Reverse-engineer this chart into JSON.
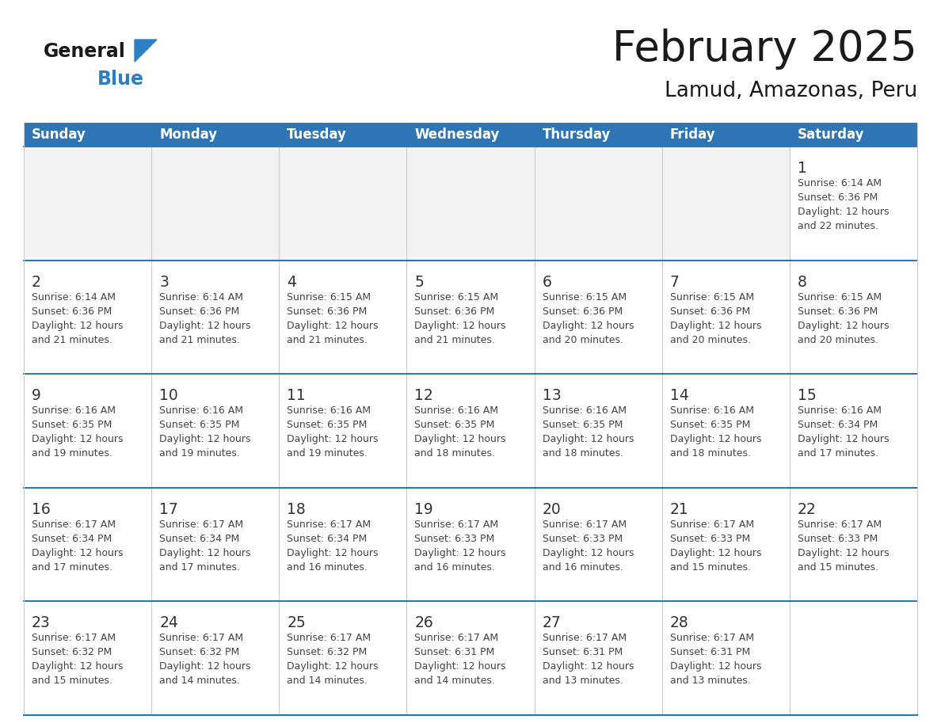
{
  "title": "February 2025",
  "subtitle": "Lamud, Amazonas, Peru",
  "days_of_week": [
    "Sunday",
    "Monday",
    "Tuesday",
    "Wednesday",
    "Thursday",
    "Friday",
    "Saturday"
  ],
  "header_bg_color": "#2E75B6",
  "header_text_color": "#FFFFFF",
  "cell_bg_color": "#FFFFFF",
  "cell_alt_bg_color": "#F2F2F2",
  "border_color": "#2E75B6",
  "col_border_color": "#CCCCCC",
  "day_number_color": "#333333",
  "info_text_color": "#444444",
  "title_color": "#1A1A1A",
  "logo_general_color": "#1A1A1A",
  "logo_blue_color": "#2E7EC2",
  "weeks": [
    [
      null,
      null,
      null,
      null,
      null,
      null,
      1
    ],
    [
      2,
      3,
      4,
      5,
      6,
      7,
      8
    ],
    [
      9,
      10,
      11,
      12,
      13,
      14,
      15
    ],
    [
      16,
      17,
      18,
      19,
      20,
      21,
      22
    ],
    [
      23,
      24,
      25,
      26,
      27,
      28,
      null
    ]
  ],
  "cell_data": {
    "1": {
      "sunrise": "6:14 AM",
      "sunset": "6:36 PM",
      "daylight_hours": 12,
      "daylight_minutes": 22
    },
    "2": {
      "sunrise": "6:14 AM",
      "sunset": "6:36 PM",
      "daylight_hours": 12,
      "daylight_minutes": 21
    },
    "3": {
      "sunrise": "6:14 AM",
      "sunset": "6:36 PM",
      "daylight_hours": 12,
      "daylight_minutes": 21
    },
    "4": {
      "sunrise": "6:15 AM",
      "sunset": "6:36 PM",
      "daylight_hours": 12,
      "daylight_minutes": 21
    },
    "5": {
      "sunrise": "6:15 AM",
      "sunset": "6:36 PM",
      "daylight_hours": 12,
      "daylight_minutes": 21
    },
    "6": {
      "sunrise": "6:15 AM",
      "sunset": "6:36 PM",
      "daylight_hours": 12,
      "daylight_minutes": 20
    },
    "7": {
      "sunrise": "6:15 AM",
      "sunset": "6:36 PM",
      "daylight_hours": 12,
      "daylight_minutes": 20
    },
    "8": {
      "sunrise": "6:15 AM",
      "sunset": "6:36 PM",
      "daylight_hours": 12,
      "daylight_minutes": 20
    },
    "9": {
      "sunrise": "6:16 AM",
      "sunset": "6:35 PM",
      "daylight_hours": 12,
      "daylight_minutes": 19
    },
    "10": {
      "sunrise": "6:16 AM",
      "sunset": "6:35 PM",
      "daylight_hours": 12,
      "daylight_minutes": 19
    },
    "11": {
      "sunrise": "6:16 AM",
      "sunset": "6:35 PM",
      "daylight_hours": 12,
      "daylight_minutes": 19
    },
    "12": {
      "sunrise": "6:16 AM",
      "sunset": "6:35 PM",
      "daylight_hours": 12,
      "daylight_minutes": 18
    },
    "13": {
      "sunrise": "6:16 AM",
      "sunset": "6:35 PM",
      "daylight_hours": 12,
      "daylight_minutes": 18
    },
    "14": {
      "sunrise": "6:16 AM",
      "sunset": "6:35 PM",
      "daylight_hours": 12,
      "daylight_minutes": 18
    },
    "15": {
      "sunrise": "6:16 AM",
      "sunset": "6:34 PM",
      "daylight_hours": 12,
      "daylight_minutes": 17
    },
    "16": {
      "sunrise": "6:17 AM",
      "sunset": "6:34 PM",
      "daylight_hours": 12,
      "daylight_minutes": 17
    },
    "17": {
      "sunrise": "6:17 AM",
      "sunset": "6:34 PM",
      "daylight_hours": 12,
      "daylight_minutes": 17
    },
    "18": {
      "sunrise": "6:17 AM",
      "sunset": "6:34 PM",
      "daylight_hours": 12,
      "daylight_minutes": 16
    },
    "19": {
      "sunrise": "6:17 AM",
      "sunset": "6:33 PM",
      "daylight_hours": 12,
      "daylight_minutes": 16
    },
    "20": {
      "sunrise": "6:17 AM",
      "sunset": "6:33 PM",
      "daylight_hours": 12,
      "daylight_minutes": 16
    },
    "21": {
      "sunrise": "6:17 AM",
      "sunset": "6:33 PM",
      "daylight_hours": 12,
      "daylight_minutes": 15
    },
    "22": {
      "sunrise": "6:17 AM",
      "sunset": "6:33 PM",
      "daylight_hours": 12,
      "daylight_minutes": 15
    },
    "23": {
      "sunrise": "6:17 AM",
      "sunset": "6:32 PM",
      "daylight_hours": 12,
      "daylight_minutes": 15
    },
    "24": {
      "sunrise": "6:17 AM",
      "sunset": "6:32 PM",
      "daylight_hours": 12,
      "daylight_minutes": 14
    },
    "25": {
      "sunrise": "6:17 AM",
      "sunset": "6:32 PM",
      "daylight_hours": 12,
      "daylight_minutes": 14
    },
    "26": {
      "sunrise": "6:17 AM",
      "sunset": "6:31 PM",
      "daylight_hours": 12,
      "daylight_minutes": 14
    },
    "27": {
      "sunrise": "6:17 AM",
      "sunset": "6:31 PM",
      "daylight_hours": 12,
      "daylight_minutes": 13
    },
    "28": {
      "sunrise": "6:17 AM",
      "sunset": "6:31 PM",
      "daylight_hours": 12,
      "daylight_minutes": 13
    }
  },
  "figsize": [
    11.88,
    9.18
  ],
  "dpi": 100
}
